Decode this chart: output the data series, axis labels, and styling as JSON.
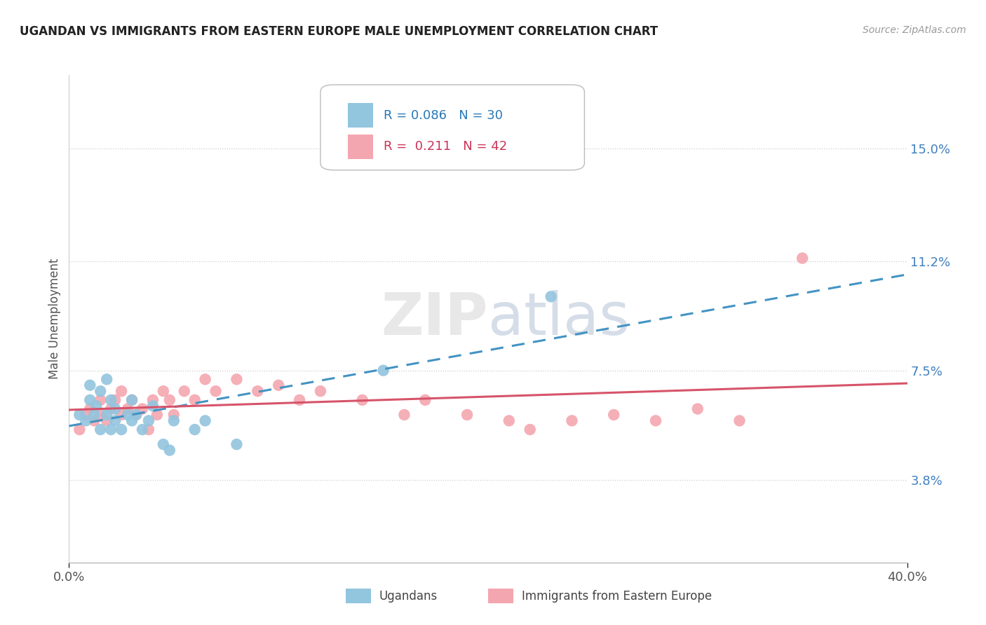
{
  "title": "UGANDAN VS IMMIGRANTS FROM EASTERN EUROPE MALE UNEMPLOYMENT CORRELATION CHART",
  "source": "Source: ZipAtlas.com",
  "ylabel": "Male Unemployment",
  "xlim": [
    0.0,
    0.4
  ],
  "ylim": [
    0.01,
    0.175
  ],
  "yticks": [
    0.038,
    0.075,
    0.112,
    0.15
  ],
  "ytick_labels": [
    "3.8%",
    "7.5%",
    "11.2%",
    "15.0%"
  ],
  "xticks": [
    0.0,
    0.4
  ],
  "xtick_labels": [
    "0.0%",
    "40.0%"
  ],
  "ugandan_R": "0.086",
  "ugandan_N": "30",
  "eastern_europe_R": "0.211",
  "eastern_europe_N": "42",
  "ugandan_color": "#92c5de",
  "eastern_europe_color": "#f4a6b0",
  "ugandan_line_color": "#4393c3",
  "eastern_europe_line_color": "#d6546a",
  "legend_label_1": "Ugandans",
  "legend_label_2": "Immigrants from Eastern Europe",
  "watermark_zip": "ZIP",
  "watermark_atlas": "atlas",
  "ugandan_x": [
    0.005,
    0.008,
    0.01,
    0.01,
    0.012,
    0.013,
    0.015,
    0.015,
    0.018,
    0.018,
    0.02,
    0.02,
    0.022,
    0.022,
    0.025,
    0.028,
    0.03,
    0.03,
    0.032,
    0.035,
    0.038,
    0.04,
    0.045,
    0.048,
    0.05,
    0.06,
    0.065,
    0.08,
    0.15,
    0.23
  ],
  "ugandan_y": [
    0.06,
    0.058,
    0.065,
    0.07,
    0.06,
    0.063,
    0.055,
    0.068,
    0.06,
    0.072,
    0.055,
    0.065,
    0.058,
    0.062,
    0.055,
    0.06,
    0.058,
    0.065,
    0.06,
    0.055,
    0.058,
    0.063,
    0.05,
    0.048,
    0.058,
    0.055,
    0.058,
    0.05,
    0.075,
    0.1
  ],
  "eastern_europe_x": [
    0.005,
    0.008,
    0.01,
    0.012,
    0.015,
    0.015,
    0.018,
    0.02,
    0.022,
    0.025,
    0.025,
    0.028,
    0.03,
    0.032,
    0.035,
    0.038,
    0.04,
    0.042,
    0.045,
    0.048,
    0.05,
    0.055,
    0.06,
    0.065,
    0.07,
    0.08,
    0.09,
    0.1,
    0.11,
    0.12,
    0.14,
    0.16,
    0.17,
    0.19,
    0.21,
    0.22,
    0.24,
    0.26,
    0.28,
    0.3,
    0.32,
    0.35
  ],
  "eastern_europe_y": [
    0.055,
    0.06,
    0.062,
    0.058,
    0.06,
    0.065,
    0.058,
    0.062,
    0.065,
    0.06,
    0.068,
    0.062,
    0.065,
    0.06,
    0.062,
    0.055,
    0.065,
    0.06,
    0.068,
    0.065,
    0.06,
    0.068,
    0.065,
    0.072,
    0.068,
    0.072,
    0.068,
    0.07,
    0.065,
    0.068,
    0.065,
    0.06,
    0.065,
    0.06,
    0.058,
    0.055,
    0.058,
    0.06,
    0.058,
    0.062,
    0.058,
    0.113
  ]
}
